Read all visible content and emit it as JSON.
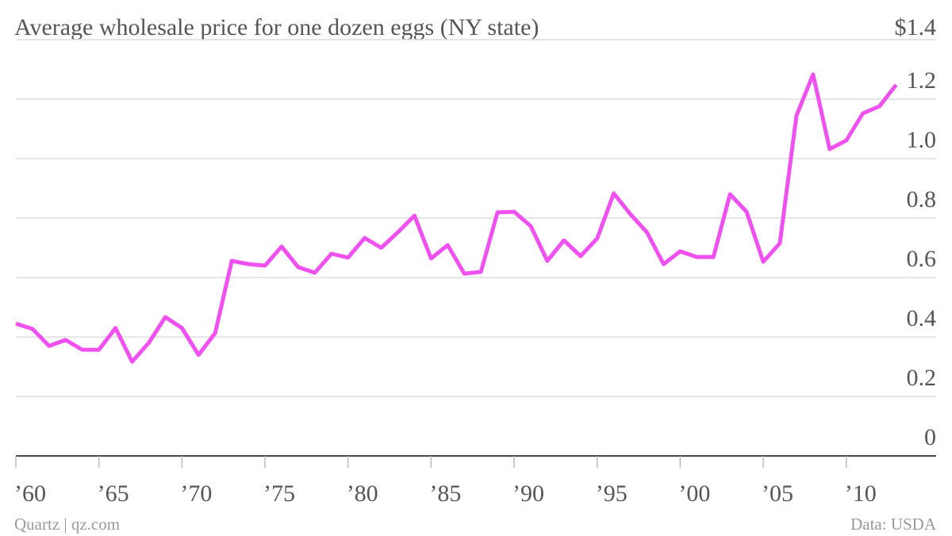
{
  "chart_data": {
    "type": "line",
    "title": "Average wholesale price for one dozen eggs (NY state)",
    "source": "Quartz | qz.com",
    "credit": "Data: USDA",
    "x": [
      1960,
      1961,
      1962,
      1963,
      1964,
      1965,
      1966,
      1967,
      1968,
      1969,
      1970,
      1971,
      1972,
      1973,
      1974,
      1975,
      1976,
      1977,
      1978,
      1979,
      1980,
      1981,
      1982,
      1983,
      1984,
      1985,
      1986,
      1987,
      1988,
      1989,
      1990,
      1991,
      1992,
      1993,
      1994,
      1995,
      1996,
      1997,
      1998,
      1999,
      2000,
      2001,
      2002,
      2003,
      2004,
      2005,
      2006,
      2007,
      2008,
      2009,
      2010,
      2011,
      2012,
      2013
    ],
    "values": [
      0.445,
      0.427,
      0.37,
      0.39,
      0.357,
      0.357,
      0.43,
      0.317,
      0.38,
      0.467,
      0.43,
      0.34,
      0.413,
      0.656,
      0.645,
      0.64,
      0.704,
      0.635,
      0.616,
      0.68,
      0.667,
      0.733,
      0.7,
      0.752,
      0.808,
      0.664,
      0.709,
      0.613,
      0.619,
      0.819,
      0.821,
      0.773,
      0.656,
      0.725,
      0.672,
      0.731,
      0.883,
      0.813,
      0.752,
      0.645,
      0.688,
      0.669,
      0.669,
      0.88,
      0.821,
      0.653,
      0.715,
      1.144,
      1.283,
      1.032,
      1.061,
      1.152,
      1.176,
      1.248
    ],
    "color": "#f050f0",
    "xlim": [
      1960,
      2013.5
    ],
    "xticks": [
      {
        "value": 1960,
        "label": "’60"
      },
      {
        "value": 1965,
        "label": "’65"
      },
      {
        "value": 1970,
        "label": "’70"
      },
      {
        "value": 1975,
        "label": "’75"
      },
      {
        "value": 1980,
        "label": "’80"
      },
      {
        "value": 1985,
        "label": "’85"
      },
      {
        "value": 1990,
        "label": "’90"
      },
      {
        "value": 1995,
        "label": "’95"
      },
      {
        "value": 2000,
        "label": "’00"
      },
      {
        "value": 2005,
        "label": "’05"
      },
      {
        "value": 2010,
        "label": "’10"
      }
    ],
    "ylim": [
      0,
      1.4
    ],
    "yticks": [
      0,
      0.2,
      0.4,
      0.6,
      0.8,
      {
        "value": 1,
        "label": "1.0"
      },
      1.2,
      {
        "value": 1.4,
        "label": "$1.4"
      }
    ],
    "grid": true
  }
}
